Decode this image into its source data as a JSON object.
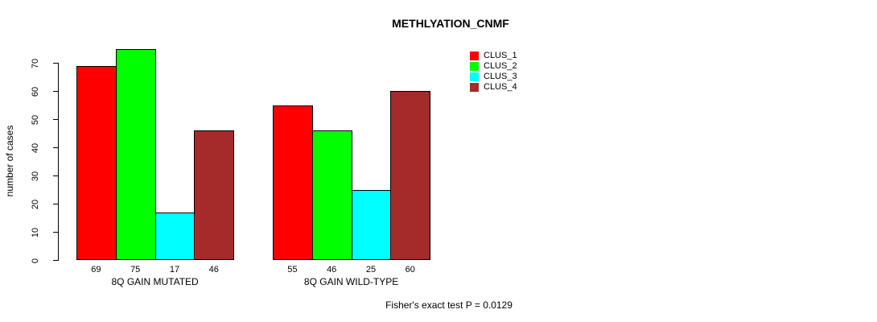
{
  "chart_data": {
    "type": "bar",
    "title": "METHLYATION_CNMF",
    "ylabel": "number of cases",
    "xlabel": "",
    "ylim": [
      0,
      75
    ],
    "yticks": [
      0,
      10,
      20,
      30,
      40,
      50,
      60,
      70
    ],
    "categories": [
      "8Q GAIN MUTATED",
      "8Q GAIN WILD-TYPE"
    ],
    "series": [
      {
        "name": "CLUS_1",
        "color": "#FF0000",
        "values": [
          69,
          55
        ]
      },
      {
        "name": "CLUS_2",
        "color": "#00FF00",
        "values": [
          75,
          46
        ]
      },
      {
        "name": "CLUS_3",
        "color": "#00FFFF",
        "values": [
          17,
          25
        ]
      },
      {
        "name": "CLUS_4",
        "color": "#A52A2A",
        "values": [
          46,
          60
        ]
      }
    ],
    "bar_value_labels": {
      "8Q GAIN MUTATED": [
        69,
        75,
        17,
        46
      ],
      "8Q GAIN WILD-TYPE": [
        55,
        46,
        25,
        60
      ]
    },
    "annotation": "Fisher's exact test P = 0.0129",
    "legend_position": "right-top",
    "grid": false,
    "background_color": "#FFFFFF",
    "axis_color": "#000000"
  }
}
